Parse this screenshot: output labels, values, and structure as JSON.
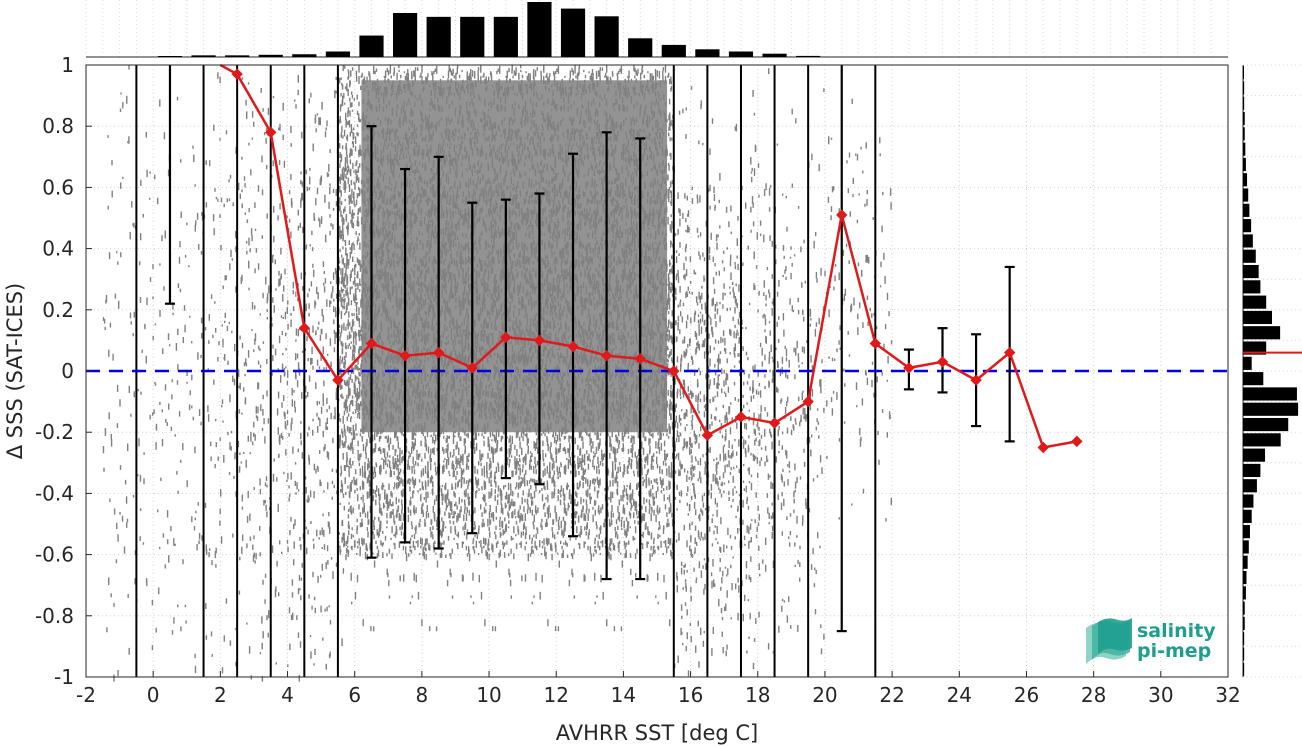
{
  "chart_data": {
    "type": "scatter",
    "xlabel": "AVHRR SST [deg C]",
    "ylabel": "Δ SSS (SAT-ICES)",
    "xlim": [
      -2,
      32
    ],
    "ylim": [
      -1,
      1
    ],
    "xticks": [
      -2,
      0,
      2,
      4,
      6,
      8,
      10,
      12,
      14,
      16,
      18,
      20,
      22,
      24,
      26,
      28,
      30,
      32
    ],
    "yticks": [
      -1,
      -0.8,
      -0.6,
      -0.4,
      -0.2,
      0,
      0.2,
      0.4,
      0.6,
      0.8,
      1
    ],
    "grid": true,
    "reference_line": {
      "y": 0,
      "style": "dashed",
      "color": "#0000e6"
    },
    "vertical_lines_x": [
      -0.5,
      1.5,
      2.5,
      3.5,
      4.5,
      5.5,
      15.5,
      16.5,
      17.5,
      18.5,
      19.5,
      21.5
    ],
    "binned_mean": {
      "color": "#e0191b",
      "x": [
        2.5,
        3.5,
        4.5,
        5.5,
        6.5,
        7.5,
        8.5,
        9.5,
        10.5,
        11.5,
        12.5,
        13.5,
        14.5,
        15.5,
        16.5,
        17.5,
        18.5,
        19.5,
        20.5,
        21.5,
        22.5,
        23.5,
        24.5,
        25.5,
        26.5,
        27.5
      ],
      "y": [
        0.97,
        0.78,
        0.14,
        -0.03,
        0.09,
        0.05,
        0.06,
        0.01,
        0.11,
        0.1,
        0.08,
        0.05,
        0.04,
        0.0,
        -0.21,
        -0.15,
        -0.17,
        -0.1,
        0.51,
        0.09,
        0.01,
        0.03,
        -0.03,
        0.06,
        -0.25,
        -0.23
      ]
    },
    "error_bars": [
      {
        "x": 0.5,
        "low": 0.22,
        "high": 1.0
      },
      {
        "x": 6.5,
        "low": -0.61,
        "high": 0.8
      },
      {
        "x": 7.5,
        "low": -0.56,
        "high": 0.66
      },
      {
        "x": 8.5,
        "low": -0.58,
        "high": 0.7
      },
      {
        "x": 9.5,
        "low": -0.53,
        "high": 0.55
      },
      {
        "x": 10.5,
        "low": -0.35,
        "high": 0.56
      },
      {
        "x": 11.5,
        "low": -0.37,
        "high": 0.58
      },
      {
        "x": 12.5,
        "low": -0.54,
        "high": 0.71
      },
      {
        "x": 13.5,
        "low": -0.68,
        "high": 0.78
      },
      {
        "x": 14.5,
        "low": -0.68,
        "high": 0.76
      },
      {
        "x": 20.5,
        "low": -0.85,
        "high": 1.0
      },
      {
        "x": 22.5,
        "low": -0.06,
        "high": 0.07
      },
      {
        "x": 23.5,
        "low": -0.07,
        "high": 0.14
      },
      {
        "x": 24.5,
        "low": -0.18,
        "high": 0.12
      },
      {
        "x": 25.5,
        "low": -0.23,
        "high": 0.34
      }
    ],
    "top_histogram": {
      "bin_centers": [
        0.5,
        1.5,
        2.5,
        3.5,
        4.5,
        5.5,
        6.5,
        7.5,
        8.5,
        9.5,
        10.5,
        11.5,
        12.5,
        13.5,
        14.5,
        15.5,
        16.5,
        17.5,
        18.5,
        19.5
      ],
      "relative_counts": [
        0.0,
        0.03,
        0.03,
        0.04,
        0.05,
        0.1,
        0.39,
        0.8,
        0.73,
        0.73,
        0.73,
        1.0,
        0.88,
        0.74,
        0.34,
        0.22,
        0.14,
        0.1,
        0.06,
        0.02
      ]
    },
    "right_histogram": {
      "bin_centers": [
        -0.975,
        -0.925,
        -0.875,
        -0.825,
        -0.775,
        -0.725,
        -0.675,
        -0.625,
        -0.575,
        -0.525,
        -0.475,
        -0.425,
        -0.375,
        -0.325,
        -0.275,
        -0.225,
        -0.175,
        -0.125,
        -0.075,
        -0.025,
        0.025,
        0.075,
        0.125,
        0.175,
        0.225,
        0.275,
        0.325,
        0.375,
        0.425,
        0.475,
        0.525,
        0.575,
        0.625,
        0.675,
        0.725,
        0.775,
        0.825,
        0.875,
        0.925,
        0.975
      ],
      "relative_counts": [
        0.02,
        0.02,
        0.02,
        0.03,
        0.03,
        0.05,
        0.06,
        0.08,
        0.1,
        0.12,
        0.15,
        0.18,
        0.24,
        0.3,
        0.38,
        0.65,
        0.78,
        0.95,
        0.93,
        0.35,
        0.15,
        0.4,
        0.64,
        0.5,
        0.4,
        0.3,
        0.27,
        0.22,
        0.17,
        0.14,
        0.11,
        0.09,
        0.07,
        0.05,
        0.04,
        0.03,
        0.03,
        0.02,
        0.02,
        0.01
      ],
      "mean_line_y": 0.06,
      "mean_line_color": "#e0191b"
    },
    "scatter_color": "#808080"
  },
  "logo": {
    "line1": "salinity",
    "line2": "pi-mep",
    "color": "#1f9e8f"
  }
}
